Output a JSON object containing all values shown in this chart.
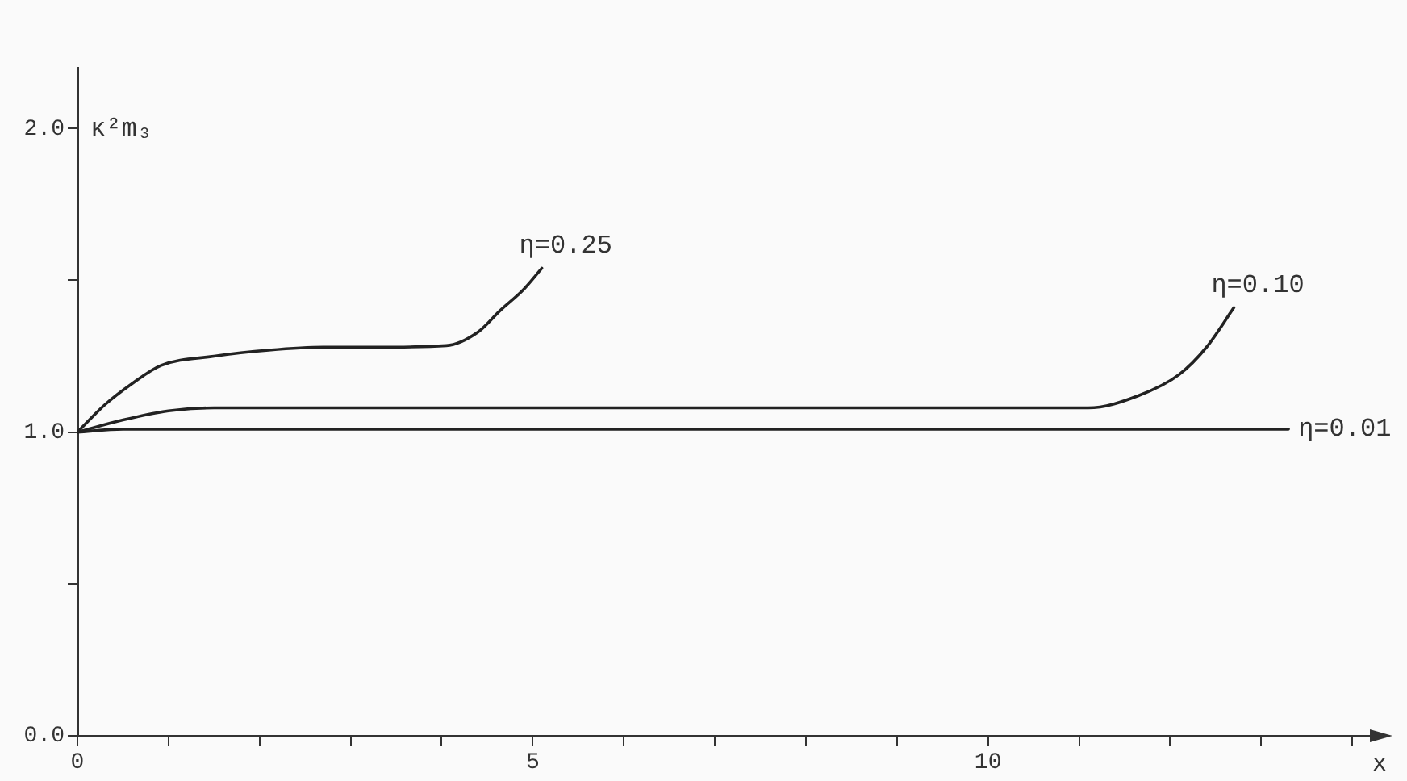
{
  "chart_data": {
    "type": "line",
    "xlabel": "x",
    "ylabel": "κ²m₃",
    "xlim": [
      0,
      14.3
    ],
    "xticks": [
      {
        "value": 0,
        "label": "0"
      },
      {
        "value": 1,
        "label": null
      },
      {
        "value": 2,
        "label": null
      },
      {
        "value": 3,
        "label": null
      },
      {
        "value": 4,
        "label": null
      },
      {
        "value": 5,
        "label": "5"
      },
      {
        "value": 6,
        "label": null
      },
      {
        "value": 7,
        "label": null
      },
      {
        "value": 8,
        "label": null
      },
      {
        "value": 9,
        "label": null
      },
      {
        "value": 10,
        "label": "10"
      },
      {
        "value": 11,
        "label": null
      },
      {
        "value": 12,
        "label": null
      },
      {
        "value": 13,
        "label": null
      },
      {
        "value": 14,
        "label": null
      }
    ],
    "ylim": [
      0,
      2.2
    ],
    "yticks": [
      {
        "value": 0,
        "label": "0.0"
      },
      {
        "value": 0.5,
        "label": null
      },
      {
        "value": 1,
        "label": "1.0"
      },
      {
        "value": 1.5,
        "label": null
      },
      {
        "value": 2,
        "label": "2.0"
      }
    ],
    "grid": false,
    "legend": false,
    "marker": "none",
    "line_style": "solid",
    "series": [
      {
        "name": "η=0.25",
        "color": "#222222",
        "x": [
          0,
          0.3,
          0.6,
          0.92,
          1.5,
          2.1,
          2.7,
          3.3,
          4.05,
          4.4,
          4.64,
          4.9,
          5.1
        ],
        "values": [
          1.0,
          1.09,
          1.16,
          1.22,
          1.25,
          1.27,
          1.28,
          1.28,
          1.285,
          1.33,
          1.4,
          1.47,
          1.54
        ]
      },
      {
        "name": "η=0.10",
        "color": "#222222",
        "x": [
          0,
          0.5,
          1,
          1.5,
          3,
          6,
          9,
          11.1,
          11.65,
          12.1,
          12.4,
          12.7
        ],
        "values": [
          1.0,
          1.04,
          1.07,
          1.08,
          1.08,
          1.08,
          1.08,
          1.08,
          1.12,
          1.19,
          1.28,
          1.41
        ]
      },
      {
        "name": "η=0.01",
        "color": "#222222",
        "x": [
          0,
          0.5,
          3,
          6,
          9,
          12,
          13.3
        ],
        "values": [
          1.0,
          1.01,
          1.01,
          1.01,
          1.01,
          1.01,
          1.01
        ]
      }
    ]
  }
}
